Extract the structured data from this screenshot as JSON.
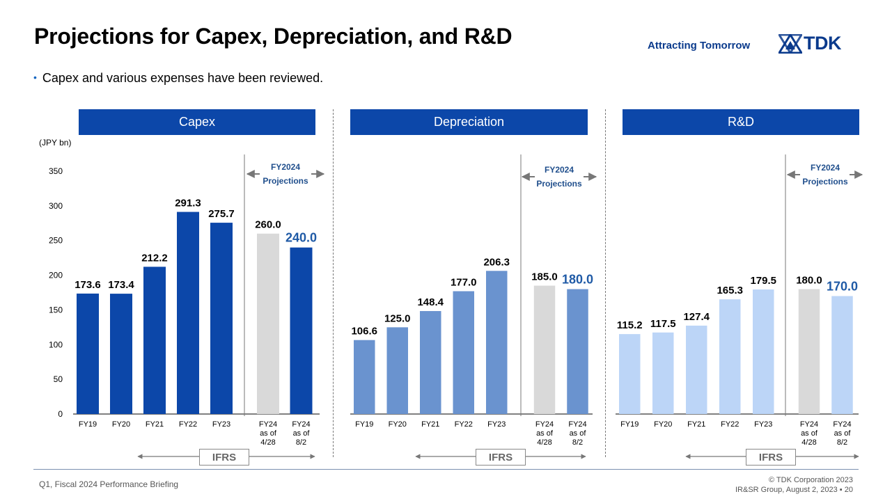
{
  "title": "Projections for Capex, Depreciation, and R&D",
  "tagline": "Attracting Tomorrow",
  "logo_text": "TDK",
  "bullet": "Capex and various expenses have been reviewed.",
  "unit_label": "(JPY bn)",
  "projection_label": [
    "FY2024",
    "Projections"
  ],
  "ifrs_label": "IFRS",
  "footer": {
    "left": "Q1, Fiscal 2024 Performance Briefing",
    "right_line1": "© TDK Corporation 2023",
    "right_line2": "IR&SR Group, August 2, 2023 ▪ 20"
  },
  "colors": {
    "header": "#0c47a9",
    "capex": "#0c47a9",
    "depreciation": "#6a93cf",
    "rnd": "#bcd5f7",
    "projection_grey": "#d9d9d9",
    "highlight_label": "#1f5aa6"
  },
  "chart_data": [
    {
      "type": "bar",
      "title": "Capex",
      "categories": [
        "FY19",
        "FY20",
        "FY21",
        "FY22",
        "FY23",
        "FY24\nas of\n4/28",
        "FY24\nas of\n8/2"
      ],
      "values": [
        173.6,
        173.4,
        212.2,
        291.3,
        275.7,
        260.0,
        240.0
      ],
      "labels": [
        "173.6",
        "173.4",
        "212.2",
        "291.3",
        "275.7",
        "260.0",
        "240.0"
      ],
      "ylabel": "(JPY bn)",
      "yticks": [
        "0",
        "50",
        "100",
        "150",
        "200",
        "250",
        "300",
        "350"
      ],
      "ylim": [
        0,
        350
      ]
    },
    {
      "type": "bar",
      "title": "Depreciation",
      "categories": [
        "FY19",
        "FY20",
        "FY21",
        "FY22",
        "FY23",
        "FY24\nas of\n4/28",
        "FY24\nas of\n8/2"
      ],
      "values": [
        106.6,
        125.0,
        148.4,
        177.0,
        206.3,
        185.0,
        180.0
      ],
      "labels": [
        "106.6",
        "125.0",
        "148.4",
        "177.0",
        "206.3",
        "185.0",
        "180.0"
      ],
      "ylim": [
        0,
        350
      ]
    },
    {
      "type": "bar",
      "title": "R&D",
      "categories": [
        "FY19",
        "FY20",
        "FY21",
        "FY22",
        "FY23",
        "FY24\nas of\n4/28",
        "FY24\nas of\n8/2"
      ],
      "values": [
        115.2,
        117.5,
        127.4,
        165.3,
        179.5,
        180.0,
        170.0
      ],
      "labels": [
        "115.2",
        "117.5",
        "127.4",
        "165.3",
        "179.5",
        "180.0",
        "170.0"
      ],
      "ylim": [
        0,
        350
      ]
    }
  ]
}
